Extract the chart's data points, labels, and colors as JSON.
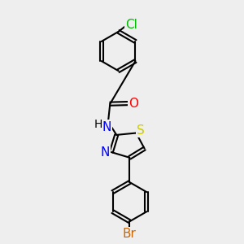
{
  "background_color": "#eeeeee",
  "atom_colors": {
    "C": "#000000",
    "N": "#0000ff",
    "O": "#ff0000",
    "S": "#cccc00",
    "Br": "#cc6600",
    "Cl": "#00bb00",
    "H": "#000000"
  },
  "bond_color": "#000000",
  "bond_width": 1.5,
  "font_size": 10
}
